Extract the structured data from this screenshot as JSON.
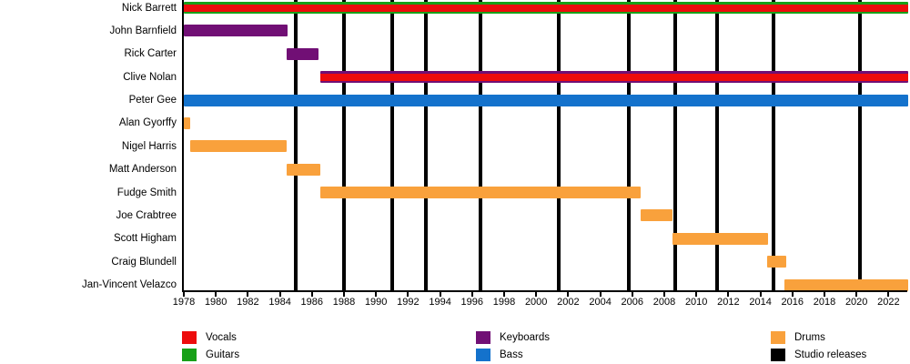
{
  "colors": {
    "vocals": "#ed0c0c",
    "guitars": "#18a018",
    "keyboards": "#710f75",
    "bass": "#1472cc",
    "drums": "#f9a13c",
    "releases": "#000000",
    "axis": "#000000"
  },
  "chart_data": {
    "type": "timeline",
    "title": "",
    "x_axis": {
      "start": 1978,
      "end": 2023.2,
      "ticks": [
        1978,
        1980,
        1982,
        1984,
        1986,
        1988,
        1990,
        1992,
        1994,
        1996,
        1998,
        2000,
        2002,
        2004,
        2006,
        2008,
        2010,
        2012,
        2014,
        2016,
        2018,
        2020,
        2022
      ]
    },
    "members": [
      {
        "name": "Nick Barrett",
        "roles": [
          "Vocals",
          "Guitars"
        ],
        "bar": {
          "base": "guitars",
          "stripe": "vocals"
        },
        "from": 1978,
        "to": 2023.2
      },
      {
        "name": "John Barnfield",
        "roles": [
          "Keyboards"
        ],
        "bar": {
          "base": "keyboards"
        },
        "from": 1978,
        "to": 1984.5
      },
      {
        "name": "Rick Carter",
        "roles": [
          "Keyboards"
        ],
        "bar": {
          "base": "keyboards"
        },
        "from": 1984.4,
        "to": 1986.4
      },
      {
        "name": "Clive Nolan",
        "roles": [
          "Keyboards",
          "Vocals"
        ],
        "bar": {
          "base": "keyboards",
          "stripe": "vocals"
        },
        "from": 1986.5,
        "to": 2023.2
      },
      {
        "name": "Peter Gee",
        "roles": [
          "Bass"
        ],
        "bar": {
          "base": "bass"
        },
        "from": 1978,
        "to": 2023.2
      },
      {
        "name": "Alan Gyorffy",
        "roles": [
          "Drums"
        ],
        "bar": {
          "base": "drums"
        },
        "from": 1978,
        "to": 1978.4
      },
      {
        "name": "Nigel Harris",
        "roles": [
          "Drums"
        ],
        "bar": {
          "base": "drums"
        },
        "from": 1978.4,
        "to": 1984.4
      },
      {
        "name": "Matt Anderson",
        "roles": [
          "Drums"
        ],
        "bar": {
          "base": "drums"
        },
        "from": 1984.4,
        "to": 1986.5
      },
      {
        "name": "Fudge Smith",
        "roles": [
          "Drums"
        ],
        "bar": {
          "base": "drums"
        },
        "from": 1986.5,
        "to": 2006.5
      },
      {
        "name": "Joe Crabtree",
        "roles": [
          "Drums"
        ],
        "bar": {
          "base": "drums"
        },
        "from": 2006.5,
        "to": 2008.5
      },
      {
        "name": "Scott Higham",
        "roles": [
          "Drums"
        ],
        "bar": {
          "base": "drums"
        },
        "from": 2008.5,
        "to": 2014.5
      },
      {
        "name": "Craig Blundell",
        "roles": [
          "Drums"
        ],
        "bar": {
          "base": "drums"
        },
        "from": 2014.4,
        "to": 2015.6
      },
      {
        "name": "Jan-Vincent Velazco",
        "roles": [
          "Drums"
        ],
        "bar": {
          "base": "drums"
        },
        "from": 2015.5,
        "to": 2023.2
      }
    ],
    "studio_releases": [
      1985.0,
      1988.0,
      1991.0,
      1993.1,
      1996.5,
      2001.4,
      2005.8,
      2008.7,
      2011.3,
      2014.8,
      2020.2
    ],
    "legend": [
      {
        "label": "Vocals",
        "key": "vocals",
        "col": 0,
        "row": 0
      },
      {
        "label": "Guitars",
        "key": "guitars",
        "col": 0,
        "row": 1
      },
      {
        "label": "Keyboards",
        "key": "keyboards",
        "col": 1,
        "row": 0
      },
      {
        "label": "Bass",
        "key": "bass",
        "col": 1,
        "row": 1
      },
      {
        "label": "Drums",
        "key": "drums",
        "col": 2,
        "row": 0
      },
      {
        "label": "Studio releases",
        "key": "releases",
        "col": 2,
        "row": 1
      }
    ]
  }
}
